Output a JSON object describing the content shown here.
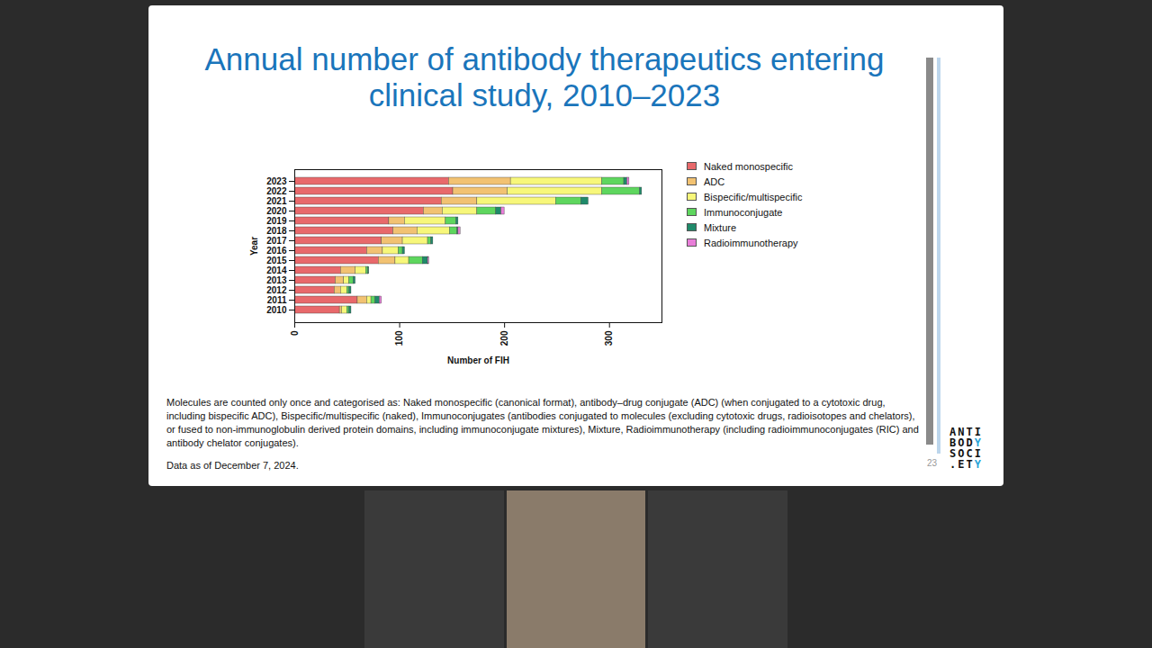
{
  "chart_data": {
    "type": "bar",
    "orientation": "horizontal",
    "stacked": true,
    "title": "Annual number of antibody therapeutics entering clinical study, 2010–2023",
    "x_label": "Number of FIH",
    "y_label": "Year",
    "categories": [
      "2023",
      "2022",
      "2021",
      "2020",
      "2019",
      "2018",
      "2017",
      "2016",
      "2015",
      "2014",
      "2013",
      "2012",
      "2011",
      "2010"
    ],
    "xlim": [
      0,
      350
    ],
    "xticks": [
      0,
      100,
      200,
      300
    ],
    "grid": false,
    "legend": "right",
    "series": [
      {
        "name": "Naked monospecific",
        "color": "#e8696b",
        "values": [
          147,
          151,
          140,
          123,
          90,
          94,
          83,
          69,
          80,
          44,
          39,
          38,
          60,
          43
        ]
      },
      {
        "name": "ADC",
        "color": "#f2c272",
        "values": [
          59,
          52,
          34,
          18,
          15,
          23,
          20,
          15,
          16,
          14,
          8,
          6,
          9,
          2
        ]
      },
      {
        "name": "Bispecific/multispecific",
        "color": "#f7f77a",
        "values": [
          87,
          90,
          75,
          33,
          39,
          31,
          24,
          15,
          13,
          10,
          5,
          6,
          4,
          5
        ]
      },
      {
        "name": "Immunoconjugate",
        "color": "#5ed65e",
        "values": [
          21,
          36,
          24,
          18,
          10,
          7,
          3,
          4,
          13,
          2,
          4,
          2,
          4,
          2
        ]
      },
      {
        "name": "Mixture",
        "color": "#1f8a6a",
        "values": [
          3,
          2,
          7,
          5,
          2,
          1,
          2,
          2,
          5,
          1,
          2,
          2,
          4,
          2
        ]
      },
      {
        "name": "Radioimmunotherapy",
        "color": "#e87ed8",
        "values": [
          2,
          0,
          0,
          3,
          0,
          2,
          0,
          0,
          1,
          0,
          0,
          0,
          2,
          0
        ]
      }
    ],
    "annotations": [
      "Molecules are counted only once and categorised as: Naked monospecific (canonical format), antibody–drug conjugate (ADC) (when conjugated to a cytotoxic drug, including bispecific ADC), Bispecific/multispecific (naked), Immunoconjugates (antibodies conjugated to molecules (excluding cytotoxic drugs, radioisotopes and chelators), or fused to non-immunoglobulin derived protein domains, including immunoconjugate mixtures), Mixture, Radioimmunotherapy (including radioimmunoconjugates (RIC) and antibody chelator conjugates).",
      "Data as of December 7, 2024.",
      "23"
    ],
    "logo": [
      "ANTI",
      "BODY",
      "SOCI",
      ".ETY"
    ]
  }
}
